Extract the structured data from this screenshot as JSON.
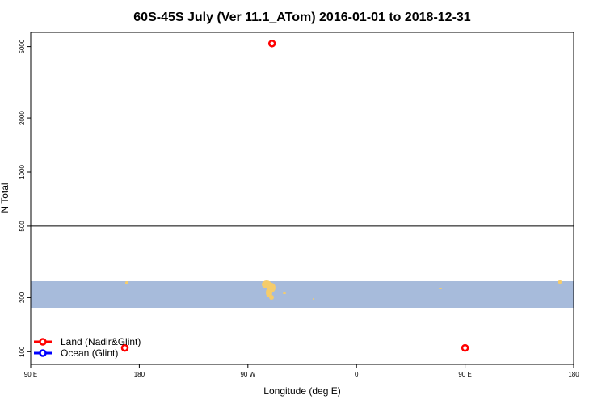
{
  "chart_data": {
    "type": "scatter",
    "title": "60S-45S July (Ver 11.1_ATom)   2016-01-01 to 2018-12-31",
    "xlabel": "Longitude (deg E)",
    "ylabel": "N Total",
    "x_ticks": [
      {
        "value": 90,
        "label": "90 E"
      },
      {
        "value": 180,
        "label": "180"
      },
      {
        "value": 270,
        "label": "90 W"
      },
      {
        "value": 360,
        "label": "0"
      },
      {
        "value": 450,
        "label": "90 E"
      },
      {
        "value": 540,
        "label": "180"
      }
    ],
    "xlim": [
      90,
      540
    ],
    "y_scale": "log",
    "y_ticks": [
      100,
      200,
      500,
      1000,
      2000,
      5000
    ],
    "ylim": [
      85,
      6000
    ],
    "reference_line_y": 500,
    "legend_position": "bottom-left",
    "series": [
      {
        "name": "Land (Nadir&Glint)",
        "color": "#ff0000",
        "points": [
          {
            "x": 290,
            "y": 5200
          },
          {
            "x": 168,
            "y": 105
          },
          {
            "x": 450,
            "y": 105
          }
        ]
      },
      {
        "name": "Ocean (Glint)",
        "color": "#0000ff",
        "points": []
      }
    ]
  },
  "colors": {
    "ocean": "#a7bbdb",
    "land": "#f5cc6b"
  }
}
